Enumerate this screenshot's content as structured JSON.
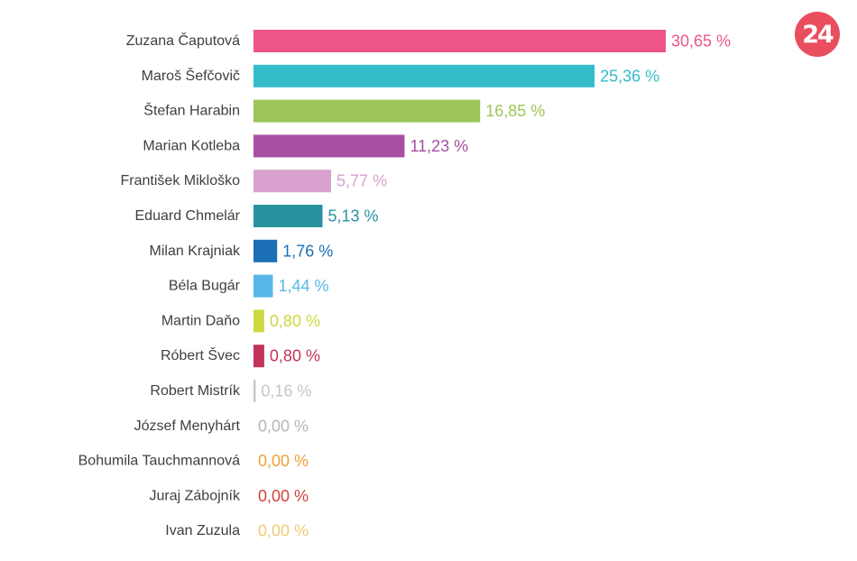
{
  "logo": {
    "text": "24",
    "color": "#e94e5f"
  },
  "chart_data": {
    "type": "bar",
    "orientation": "horizontal",
    "title": "",
    "xlabel": "",
    "ylabel": "",
    "value_suffix": " %",
    "decimal_separator": ",",
    "xlim": [
      0,
      30.65
    ],
    "grid": false,
    "legend": "none",
    "categories": [
      "Zuzana Čaputová",
      "Maroš Šefčovič",
      "Štefan Harabin",
      "Marian Kotleba",
      "František Mikloško",
      "Eduard Chmelár",
      "Milan Krajniak",
      "Béla Bugár",
      "Martin Daňo",
      "Róbert Švec",
      "Robert Mistrík",
      "József Menyhárt",
      "Bohumila Tauchmannová",
      "Juraj Zábojník",
      "Ivan Zuzula"
    ],
    "values": [
      30.65,
      25.36,
      16.85,
      11.23,
      5.77,
      5.13,
      1.76,
      1.44,
      0.8,
      0.8,
      0.16,
      0.0,
      0.0,
      0.0,
      0.0
    ],
    "colors": [
      "#ec5585",
      "#35bcc9",
      "#9cc659",
      "#a84ea3",
      "#d9a1cd",
      "#2a919f",
      "#1b6fb5",
      "#58b7e8",
      "#cdd940",
      "#c3345b",
      "#c6c6c6",
      "#b5b5b5",
      "#f0a13c",
      "#d0443c",
      "#f2c97a"
    ]
  }
}
